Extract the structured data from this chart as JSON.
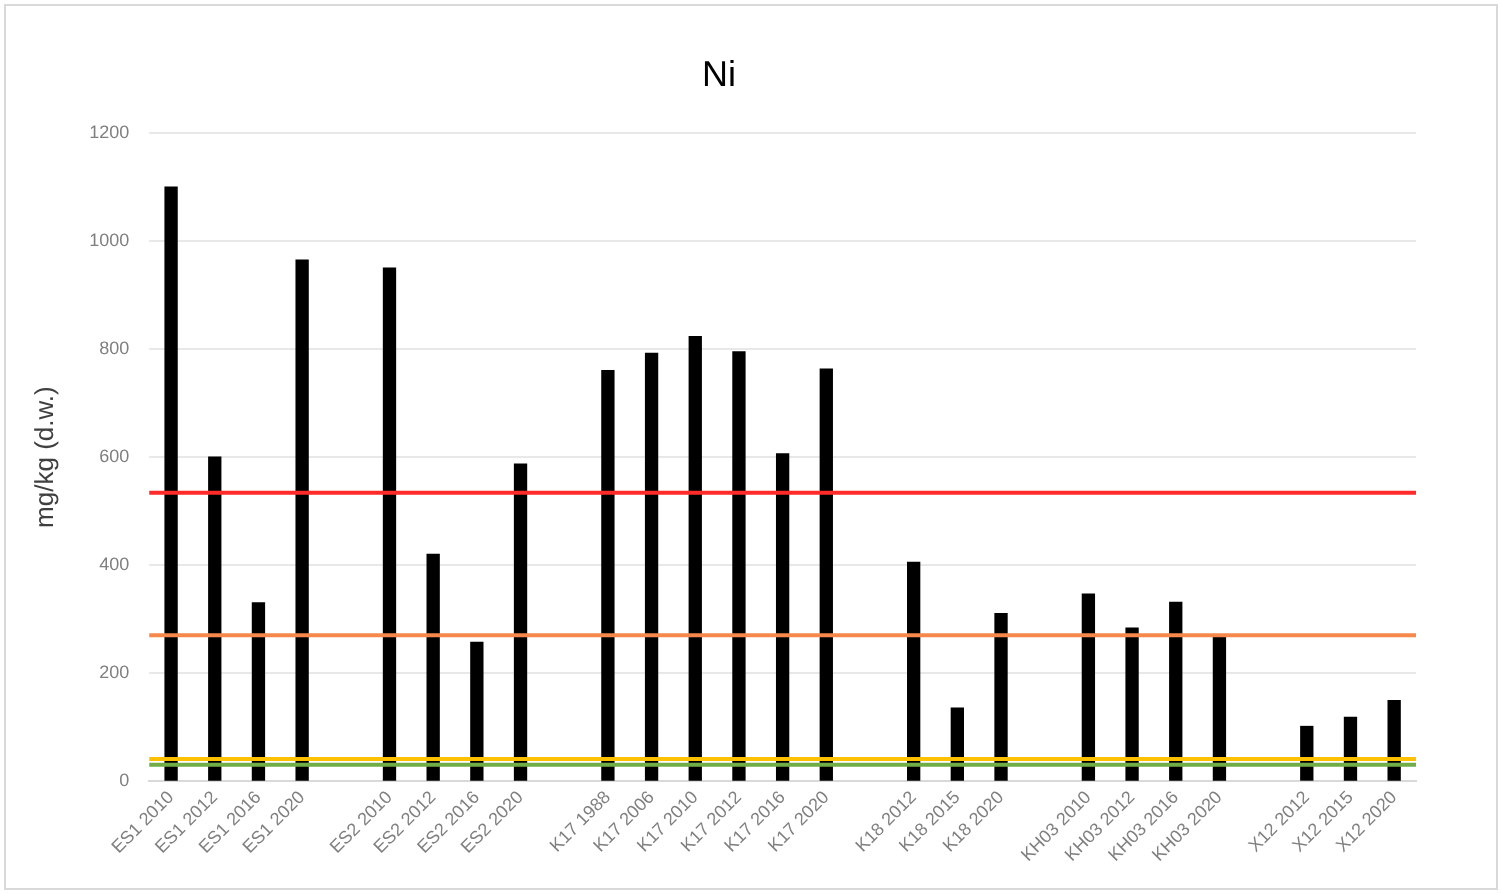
{
  "chart_data": {
    "type": "bar",
    "title": "Ni",
    "ylabel": "mg/kg (d.w.)",
    "categories": [
      "ES1 2010",
      "ES1 2012",
      "ES1 2016",
      "ES1 2020",
      null,
      "ES2 2010",
      "ES2 2012",
      "ES2 2016",
      "ES2 2020",
      null,
      "K17 1988",
      "K17 2006",
      "K17 2010",
      "K17 2012",
      "K17 2016",
      "K17 2020",
      null,
      "K18 2012",
      "K18 2015",
      "K18 2020",
      null,
      "KH03 2010",
      "KH03 2012",
      "KH03 2016",
      "KH03 2020",
      null,
      "X12 2012",
      "X12 2015",
      "X12 2020"
    ],
    "values": [
      1100,
      600,
      330,
      965,
      null,
      950,
      420,
      257,
      587,
      null,
      760,
      792,
      823,
      795,
      606,
      763,
      null,
      405,
      135,
      310,
      null,
      346,
      283,
      331,
      267,
      null,
      101,
      118,
      149
    ],
    "color": "#000000",
    "ylim": [
      0,
      1200
    ],
    "yticks": [
      0,
      200,
      400,
      600,
      800,
      1000,
      1200
    ],
    "grid": "y",
    "legend": false,
    "ref_lines": [
      {
        "axis": "y",
        "value": 534,
        "color": "#ff2a2a"
      },
      {
        "axis": "y",
        "value": 270,
        "color": "#f5884a"
      },
      {
        "axis": "y",
        "value": 41,
        "color": "#ffc000"
      },
      {
        "axis": "y",
        "value": 30,
        "color": "#70ad47"
      }
    ]
  }
}
